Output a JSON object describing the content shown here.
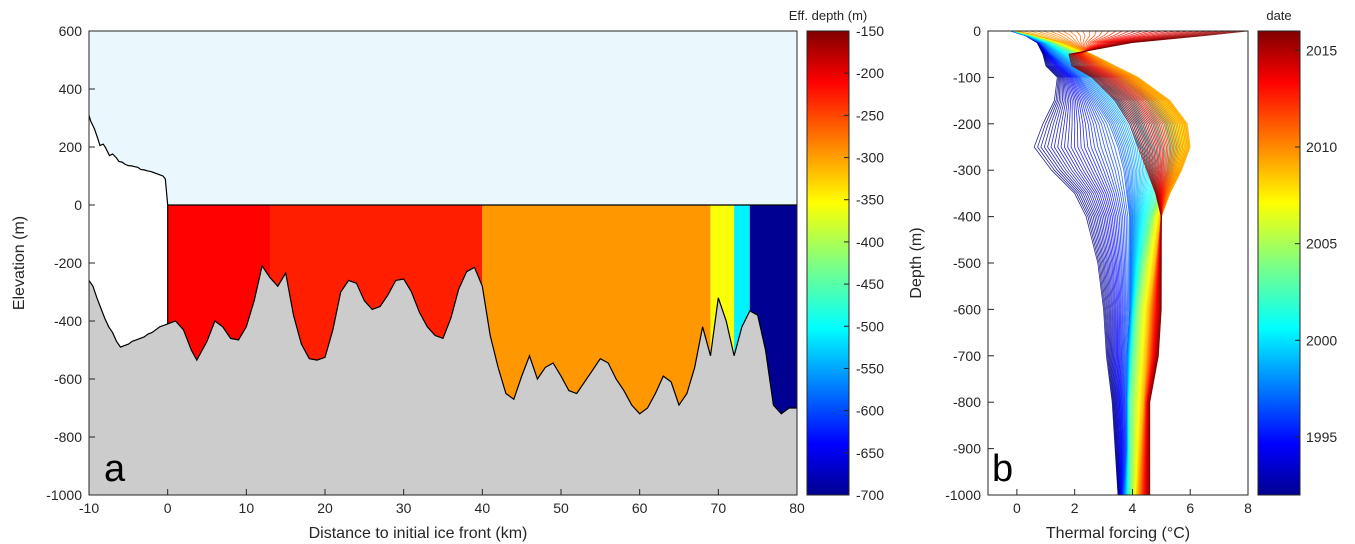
{
  "chart_data": [
    {
      "type": "area",
      "panel_label": "a",
      "xlabel": "Distance to initial ice front (km)",
      "ylabel": "Elevation (m)",
      "xlim": [
        -10,
        80
      ],
      "ylim": [
        -1000,
        600
      ],
      "xticks": [
        "-10",
        "0",
        "10",
        "20",
        "30",
        "40",
        "50",
        "60",
        "70",
        "80"
      ],
      "yticks": [
        "-1000",
        "-800",
        "-600",
        "-400",
        "-200",
        "0",
        "200",
        "400",
        "600"
      ],
      "ice_surface": {
        "x": [
          -10,
          -9.8,
          -9.3,
          -8.9,
          -8.6,
          -8.2,
          -7.9,
          -7.4,
          -7,
          -6.5,
          -6.2,
          -5.8,
          -5.4,
          -5,
          -4.6,
          -4.2,
          -3.8,
          -3.4,
          -3,
          -2.6,
          -2.2,
          -1.8,
          -1.4,
          -1,
          -0.6,
          -0.3,
          0
        ],
        "y": [
          310,
          290,
          262,
          230,
          205,
          210,
          198,
          170,
          176,
          162,
          150,
          148,
          140,
          136,
          135,
          132,
          130,
          122,
          121,
          118,
          116,
          112,
          108,
          104,
          100,
          90,
          0
        ]
      },
      "bed": {
        "x": [
          -10,
          -9.5,
          -9,
          -8.5,
          -8,
          -7.5,
          -7,
          -6.5,
          -6,
          -5.5,
          -5,
          -4.5,
          -4,
          -3.5,
          -3,
          -2.5,
          -2,
          -1.5,
          -1,
          -0.5,
          0,
          1,
          2,
          3,
          3.7,
          5,
          6,
          7,
          8,
          9,
          10,
          11,
          12,
          13,
          14,
          15,
          16,
          17,
          18,
          19,
          20,
          21,
          22,
          23,
          24,
          25,
          26,
          27,
          28,
          29,
          30,
          31,
          32,
          33,
          34,
          35,
          36,
          37,
          38,
          39,
          40,
          41,
          42,
          43,
          44,
          45,
          46,
          47,
          48,
          49,
          50,
          51,
          52,
          53,
          54,
          55,
          56,
          57,
          58,
          59,
          60,
          61,
          62,
          63,
          64,
          65,
          66,
          67,
          68,
          69,
          70,
          71,
          72,
          73,
          74,
          75,
          76,
          77,
          78,
          79,
          80
        ],
        "y": [
          -260,
          -280,
          -320,
          -355,
          -390,
          -420,
          -440,
          -470,
          -490,
          -485,
          -480,
          -470,
          -465,
          -460,
          -455,
          -445,
          -440,
          -430,
          -420,
          -415,
          -410,
          -400,
          -430,
          -500,
          -535,
          -470,
          -400,
          -420,
          -460,
          -465,
          -420,
          -330,
          -210,
          -250,
          -280,
          -235,
          -380,
          -480,
          -530,
          -535,
          -525,
          -430,
          -300,
          -260,
          -270,
          -330,
          -360,
          -350,
          -310,
          -260,
          -255,
          -300,
          -370,
          -420,
          -450,
          -460,
          -390,
          -290,
          -230,
          -215,
          -280,
          -450,
          -560,
          -650,
          -670,
          -590,
          -520,
          -600,
          -560,
          -545,
          -590,
          -640,
          -650,
          -610,
          -570,
          -530,
          -545,
          -600,
          -640,
          -690,
          -720,
          -700,
          -650,
          -590,
          -610,
          -690,
          -650,
          -560,
          -420,
          -520,
          -320,
          -400,
          -520,
          -420,
          -365,
          -380,
          -500,
          -690,
          -720,
          -700,
          -700
        ]
      },
      "effective_depth_blocks": [
        {
          "x_range": [
            0,
            13
          ],
          "value": -220
        },
        {
          "x_range": [
            13,
            40
          ],
          "value": -235
        },
        {
          "x_range": [
            40,
            69
          ],
          "value": -300
        },
        {
          "x_range": [
            69,
            72
          ],
          "value": -360
        },
        {
          "x_range": [
            72,
            74
          ],
          "value": -500
        },
        {
          "x_range": [
            74,
            80
          ],
          "value": -690
        }
      ],
      "colorbar": {
        "title": "Eff. depth (m)",
        "range": [
          -700,
          -150
        ],
        "ticks": [
          "-150",
          "-200",
          "-250",
          "-300",
          "-350",
          "-400",
          "-450",
          "-500",
          "-550",
          "-600",
          "-650",
          "-700"
        ],
        "colormap": "jet"
      },
      "colors": {
        "sky": "#eaf8fe",
        "bedrock": "#cccccc"
      }
    },
    {
      "type": "line",
      "panel_label": "b",
      "xlabel": "Thermal forcing (°C)",
      "ylabel": "Depth (m)",
      "xlim": [
        -1,
        8
      ],
      "ylim": [
        -1000,
        0
      ],
      "xticks": [
        "0",
        "2",
        "4",
        "6",
        "8"
      ],
      "yticks": [
        "-1000",
        "-900",
        "-800",
        "-700",
        "-600",
        "-500",
        "-400",
        "-300",
        "-200",
        "-100",
        "0"
      ],
      "depths": [
        0,
        -10,
        -25,
        -50,
        -75,
        -100,
        -150,
        -200,
        -250,
        -300,
        -350,
        -400,
        -500,
        -600,
        -700,
        -800,
        -900,
        -1000
      ],
      "representative_profiles": [
        {
          "date": 1992,
          "tf": [
            -0.2,
            0.3,
            0.7,
            0.9,
            1.0,
            1.4,
            1.3,
            0.9,
            0.6,
            1.2,
            2.0,
            2.4,
            2.8,
            3.0,
            3.1,
            3.3,
            3.4,
            3.5
          ]
        },
        {
          "date": 1997,
          "tf": [
            -0.2,
            0.3,
            0.8,
            1.2,
            1.7,
            2.2,
            2.7,
            3.2,
            3.5,
            3.7,
            3.8,
            3.9,
            3.9,
            3.9,
            3.8,
            3.8,
            3.8,
            3.7
          ]
        },
        {
          "date": 2003,
          "tf": [
            -0.1,
            0.5,
            1.2,
            2.0,
            2.7,
            3.5,
            4.5,
            5.1,
            5.3,
            5.2,
            4.9,
            4.6,
            4.3,
            4.1,
            4.0,
            3.9,
            3.9,
            3.9
          ]
        },
        {
          "date": 2009,
          "tf": [
            0.0,
            0.7,
            1.6,
            2.6,
            3.4,
            4.2,
            5.3,
            5.9,
            6.0,
            5.7,
            5.3,
            5.0,
            4.8,
            4.6,
            4.5,
            4.4,
            4.3,
            4.2
          ]
        },
        {
          "date": 2016,
          "tf": [
            8.0,
            6.5,
            4.0,
            1.8,
            1.9,
            2.6,
            3.4,
            3.9,
            4.2,
            4.5,
            4.8,
            5.0,
            5.0,
            5.0,
            4.9,
            4.6,
            4.6,
            4.6
          ]
        }
      ],
      "colorbar": {
        "title": "date",
        "range": [
          1992,
          2016
        ],
        "ticks": [
          "1995",
          "2000",
          "2005",
          "2010",
          "2015"
        ],
        "colormap": "jet"
      }
    }
  ]
}
